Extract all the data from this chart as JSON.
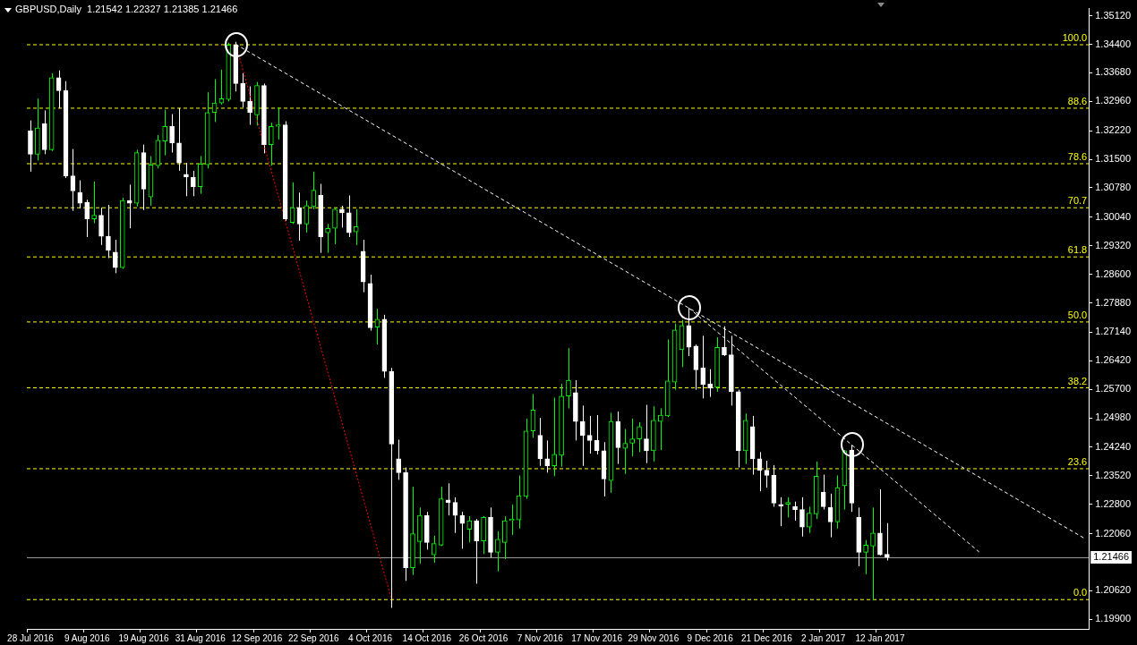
{
  "chart_data": {
    "type": "candlestick",
    "title": "GBPUSD,Daily  1.21542 1.22327 1.21385 1.21466",
    "colors": [
      "#ffffff",
      "#00ff00",
      "#ffffff",
      "#00ff00",
      "#ffffff",
      "#ffffff",
      "#ffffff",
      "#ffffff",
      "#ffffff",
      "#00ff00",
      "#ffffff",
      "#ffffff",
      "#ffffff",
      "#00ff00",
      "#ffffff",
      "#00ff00",
      "#ffffff",
      "#00ff00",
      "#00ff00",
      "#00ff00",
      "#ffffff",
      "#ffffff",
      "#ffffff",
      "#ffffff",
      "#00ff00",
      "#00ff00",
      "#00ff00",
      "#00ff00",
      "#00ff00",
      "#ffffff",
      "#ffffff",
      "#ffffff",
      "#00ff00",
      "#ffffff",
      "#00ff00",
      "#00ff00",
      "#ffffff",
      "#00ff00",
      "#ffffff",
      "#00ff00",
      "#00ff00",
      "#ffffff",
      "#00ff00",
      "#00ff00",
      "#ffffff",
      "#ffffff",
      "#00ff00",
      "#ffffff",
      "#ffffff",
      "#00ff00",
      "#ffffff",
      "#ffffff",
      "#ffffff",
      "#ffffff",
      "#00ff00",
      "#00ff00",
      "#ffffff",
      "#00ff00",
      "#00ff00",
      "#ffffff",
      "#ffffff",
      "#ffffff",
      "#00ff00",
      "#ffffff",
      "#00ff00",
      "#ffffff",
      "#00ff00",
      "#00ff00",
      "#00ff00",
      "#00ff00",
      "#00ff00",
      "#00ff00",
      "#ffffff",
      "#ffffff",
      "#00ff00",
      "#00ff00",
      "#00ff00",
      "#ffffff",
      "#ffffff",
      "#ffffff",
      "#ffffff",
      "#ffffff",
      "#00ff00",
      "#ffffff",
      "#00ff00",
      "#00ff00",
      "#00ff00",
      "#ffffff",
      "#00ff00",
      "#00ff00",
      "#00ff00",
      "#00ff00",
      "#00ff00",
      "#ffffff",
      "#ffffff",
      "#ffffff",
      "#ffffff",
      "#00ff00",
      "#ffffff",
      "#ffffff",
      "#ffffff",
      "#00ff00",
      "#ffffff",
      "#ffffff",
      "#ffffff",
      "#ffffff",
      "#ffffff",
      "#00ff00",
      "#ffffff",
      "#ffffff",
      "#00ff00",
      "#00ff00",
      "#ffffff",
      "#ffffff",
      "#00ff00",
      "#00ff00",
      "#ffffff",
      "#ffffff",
      "#00ff00",
      "#00ff00",
      "#ffffff",
      "#ffffff",
      null,
      null,
      null,
      null,
      null,
      null,
      null,
      null,
      null,
      null,
      null,
      null,
      null,
      null,
      null,
      null,
      null,
      null,
      null,
      null,
      null,
      null,
      null,
      null,
      null,
      null,
      null,
      null
    ],
    "categories": [
      "28 Jul 2016",
      null,
      null,
      null,
      null,
      null,
      null,
      null,
      "9 Aug 2016",
      null,
      null,
      null,
      null,
      null,
      null,
      null,
      "19 Aug 2016",
      null,
      null,
      null,
      null,
      null,
      null,
      null,
      "31 Aug 2016",
      null,
      null,
      null,
      null,
      null,
      null,
      null,
      "12 Sep 2016",
      null,
      null,
      null,
      null,
      null,
      null,
      null,
      "22 Sep 2016",
      null,
      null,
      null,
      null,
      null,
      null,
      null,
      "4 Oct 2016",
      null,
      null,
      null,
      null,
      null,
      null,
      null,
      "14 Oct 2016",
      null,
      null,
      null,
      null,
      null,
      null,
      null,
      "26 Oct 2016",
      null,
      null,
      null,
      null,
      null,
      null,
      null,
      "7 Nov 2016",
      null,
      null,
      null,
      null,
      null,
      null,
      null,
      "17 Nov 2016",
      null,
      null,
      null,
      null,
      null,
      null,
      null,
      "29 Nov 2016",
      null,
      null,
      null,
      null,
      null,
      null,
      null,
      "9 Dec 2016",
      null,
      null,
      null,
      null,
      null,
      null,
      null,
      "21 Dec 2016",
      null,
      null,
      null,
      null,
      null,
      null,
      null,
      "2 Jan 2017",
      null,
      null,
      null,
      null,
      null,
      null,
      null,
      "12 Jan 2017",
      null,
      null,
      null,
      null,
      null,
      null,
      null,
      null,
      null,
      null,
      null,
      null,
      null,
      null,
      null,
      null,
      null,
      null,
      null,
      null,
      null,
      null,
      null,
      null,
      null,
      null,
      null,
      null,
      null
    ],
    "ohlc": [
      [
        1.3222,
        1.3248,
        1.3119,
        1.3163
      ],
      [
        1.3163,
        1.3303,
        1.3147,
        1.3229
      ],
      [
        1.324,
        1.3273,
        1.3163,
        1.3174
      ],
      [
        1.3174,
        1.3367,
        1.3171,
        1.3356
      ],
      [
        1.3356,
        1.3374,
        1.3279,
        1.3323
      ],
      [
        1.3323,
        1.3347,
        1.3103,
        1.3108
      ],
      [
        1.3108,
        1.3176,
        1.302,
        1.307
      ],
      [
        1.3066,
        1.3097,
        1.3026,
        1.3039
      ],
      [
        1.3042,
        1.3048,
        1.2954,
        1.3
      ],
      [
        1.3,
        1.3094,
        1.2989,
        1.3009
      ],
      [
        1.3009,
        1.3028,
        1.2934,
        1.2956
      ],
      [
        1.2956,
        1.3035,
        1.2901,
        1.2921
      ],
      [
        1.2916,
        1.2947,
        1.2863,
        1.2877
      ],
      [
        1.2877,
        1.3053,
        1.2874,
        1.3046
      ],
      [
        1.3046,
        1.3086,
        1.2976,
        1.3039
      ],
      [
        1.3039,
        1.3174,
        1.3031,
        1.3167
      ],
      [
        1.3167,
        1.3187,
        1.3022,
        1.3075
      ],
      [
        1.3055,
        1.3158,
        1.3033,
        1.3136
      ],
      [
        1.3134,
        1.3211,
        1.3127,
        1.3198
      ],
      [
        1.3196,
        1.3275,
        1.316,
        1.3233
      ],
      [
        1.3233,
        1.3264,
        1.3167,
        1.3191
      ],
      [
        1.3191,
        1.3279,
        1.3121,
        1.3141
      ],
      [
        1.3112,
        1.3141,
        1.3057,
        1.3105
      ],
      [
        1.3105,
        1.3121,
        1.3057,
        1.3081
      ],
      [
        1.3081,
        1.3158,
        1.3063,
        1.3138
      ],
      [
        1.3136,
        1.3319,
        1.3127,
        1.3268
      ],
      [
        1.3268,
        1.3352,
        1.3244,
        1.3292
      ],
      [
        1.3292,
        1.3376,
        1.3288,
        1.3303
      ],
      [
        1.3301,
        1.3444,
        1.3296,
        1.3438
      ],
      [
        1.3438,
        1.3446,
        1.3321,
        1.3341
      ],
      [
        1.3341,
        1.3367,
        1.3281,
        1.3296
      ],
      [
        1.3296,
        1.3334,
        1.3237,
        1.3268
      ],
      [
        1.3262,
        1.3345,
        1.3235,
        1.3336
      ],
      [
        1.3336,
        1.3341,
        1.3165,
        1.3187
      ],
      [
        1.3187,
        1.3242,
        1.3134,
        1.3233
      ],
      [
        1.3233,
        1.3281,
        1.32,
        1.3237
      ],
      [
        1.3237,
        1.3246,
        1.2995,
        1.3
      ],
      [
        1.2991,
        1.3092,
        1.2987,
        1.3028
      ],
      [
        1.3028,
        1.3066,
        1.2945,
        1.2987
      ],
      [
        1.2987,
        1.3046,
        1.2965,
        1.3033
      ],
      [
        1.3031,
        1.3119,
        1.3024,
        1.3072
      ],
      [
        1.3059,
        1.3088,
        1.2914,
        1.2954
      ],
      [
        1.2965,
        1.2987,
        1.2914,
        1.2976
      ],
      [
        1.2976,
        1.3028,
        1.2936,
        1.3024
      ],
      [
        1.3024,
        1.3033,
        1.2978,
        1.3015
      ],
      [
        1.3015,
        1.3059,
        1.2954,
        1.2965
      ],
      [
        1.2967,
        1.3024,
        1.2934,
        1.298
      ],
      [
        1.2918,
        1.2947,
        1.2815,
        1.2841
      ],
      [
        1.2837,
        1.2859,
        1.2718,
        1.2725
      ],
      [
        1.2727,
        1.2773,
        1.2683,
        1.2747
      ],
      [
        1.2747,
        1.2758,
        1.2599,
        1.2615
      ],
      [
        1.2615,
        1.2624,
        1.2019,
        1.2432
      ],
      [
        1.2395,
        1.2443,
        1.2342,
        1.236
      ],
      [
        1.236,
        1.2373,
        1.2087,
        1.212
      ],
      [
        1.212,
        1.2324,
        1.2102,
        1.2206
      ],
      [
        1.2186,
        1.2272,
        1.2131,
        1.2252
      ],
      [
        1.2252,
        1.2261,
        1.2166,
        1.2184
      ],
      [
        1.2153,
        1.2201,
        1.2133,
        1.2181
      ],
      [
        1.2177,
        1.2324,
        1.2175,
        1.2294
      ],
      [
        1.2291,
        1.2333,
        1.2252,
        1.2285
      ],
      [
        1.2285,
        1.2298,
        1.2208,
        1.2252
      ],
      [
        1.2252,
        1.2261,
        1.2168,
        1.2232
      ],
      [
        1.2217,
        1.225,
        1.2184,
        1.2239
      ],
      [
        1.2239,
        1.2243,
        1.208,
        1.2188
      ],
      [
        1.2188,
        1.225,
        1.2155,
        1.2247
      ],
      [
        1.2247,
        1.2272,
        1.2146,
        1.2159
      ],
      [
        1.2159,
        1.2212,
        1.2111,
        1.2192
      ],
      [
        1.2184,
        1.225,
        1.2142,
        1.2239
      ],
      [
        1.2239,
        1.228,
        1.2203,
        1.2243
      ],
      [
        1.2241,
        1.2353,
        1.2219,
        1.2302
      ],
      [
        1.23,
        1.2496,
        1.2294,
        1.2465
      ],
      [
        1.2465,
        1.2558,
        1.2448,
        1.2518
      ],
      [
        1.2454,
        1.2498,
        1.2377,
        1.2395
      ],
      [
        1.2395,
        1.2441,
        1.236,
        1.2377
      ],
      [
        1.2377,
        1.2549,
        1.2351,
        1.2406
      ],
      [
        1.2404,
        1.2584,
        1.2375,
        1.2553
      ],
      [
        1.2553,
        1.2674,
        1.2522,
        1.2593
      ],
      [
        1.2562,
        1.2593,
        1.2441,
        1.2489
      ],
      [
        1.2489,
        1.2529,
        1.2377,
        1.2454
      ],
      [
        1.2454,
        1.2503,
        1.2408,
        1.2441
      ],
      [
        1.2441,
        1.2505,
        1.2406,
        1.2415
      ],
      [
        1.2415,
        1.2437,
        1.23,
        1.2344
      ],
      [
        1.234,
        1.2511,
        1.2309,
        1.2489
      ],
      [
        1.2489,
        1.2514,
        1.2382,
        1.2423
      ],
      [
        1.2421,
        1.247,
        1.2357,
        1.2434
      ],
      [
        1.2434,
        1.2496,
        1.2401,
        1.2445
      ],
      [
        1.2445,
        1.2487,
        1.2412,
        1.2476
      ],
      [
        1.2445,
        1.2531,
        1.2384,
        1.2415
      ],
      [
        1.2415,
        1.2527,
        1.2388,
        1.2492
      ],
      [
        1.2489,
        1.2522,
        1.2417,
        1.2505
      ],
      [
        1.2503,
        1.2696,
        1.25,
        1.2591
      ],
      [
        1.2588,
        1.2736,
        1.2569,
        1.272
      ],
      [
        1.267,
        1.2745,
        1.2626,
        1.2731
      ],
      [
        1.2731,
        1.2775,
        1.2654,
        1.2676
      ],
      [
        1.2679,
        1.2683,
        1.2569,
        1.2619
      ],
      [
        1.2624,
        1.2705,
        1.2547,
        1.2582
      ],
      [
        1.2584,
        1.2621,
        1.2551,
        1.2573
      ],
      [
        1.2575,
        1.2701,
        1.2564,
        1.2676
      ],
      [
        1.2676,
        1.2729,
        1.2654,
        1.2657
      ],
      [
        1.2657,
        1.2705,
        1.2529,
        1.2564
      ],
      [
        1.2564,
        1.2569,
        1.2373,
        1.2415
      ],
      [
        1.2415,
        1.2509,
        1.2382,
        1.2492
      ],
      [
        1.2476,
        1.2503,
        1.2355,
        1.2395
      ],
      [
        1.2395,
        1.2412,
        1.2313,
        1.2366
      ],
      [
        1.2366,
        1.239,
        1.2322,
        1.2353
      ],
      [
        1.2353,
        1.2379,
        1.2274,
        1.2283
      ],
      [
        1.228,
        1.2298,
        1.2225,
        1.2276
      ],
      [
        1.228,
        1.2298,
        1.2247,
        1.2285
      ],
      [
        1.2274,
        1.2287,
        1.2239,
        1.2267
      ],
      [
        1.2267,
        1.2298,
        1.2199,
        1.2223
      ],
      [
        1.2223,
        1.2274,
        1.2208,
        1.2258
      ],
      [
        1.2256,
        1.2388,
        1.2243,
        1.2351
      ],
      [
        1.2311,
        1.2355,
        1.2267,
        1.2274
      ],
      [
        1.2272,
        1.2307,
        1.2197,
        1.2236
      ],
      [
        1.2236,
        1.2353,
        1.2219,
        1.2322
      ],
      [
        1.2327,
        1.2417,
        1.2267,
        1.2415
      ],
      [
        1.2417,
        1.243,
        1.2261,
        1.2283
      ],
      [
        1.2247,
        1.2272,
        1.2124,
        1.2159
      ],
      [
        1.2159,
        1.219,
        1.2104,
        1.2177
      ],
      [
        1.2175,
        1.2272,
        1.2038,
        1.2208
      ],
      [
        1.2208,
        1.2318,
        1.2151,
        1.2153
      ],
      [
        1.21542,
        1.22327,
        1.21385,
        1.21466
      ],
      null,
      null,
      null,
      null,
      null,
      null,
      null,
      null,
      null,
      null,
      null,
      null,
      null,
      null,
      null,
      null,
      null,
      null,
      null,
      null,
      null,
      null,
      null,
      null,
      null,
      null,
      null,
      null
    ],
    "series": [
      {
        "type": "line",
        "color": "#ffffff",
        "line_style": "dashed",
        "values": [
          null,
          null,
          null,
          null,
          null,
          null,
          null,
          null,
          null,
          null,
          null,
          null,
          null,
          null,
          null,
          null,
          null,
          null,
          null,
          null,
          null,
          null,
          null,
          null,
          null,
          null,
          null,
          null,
          null,
          1.344,
          null,
          null,
          null,
          null,
          null,
          null,
          null,
          null,
          null,
          null,
          null,
          null,
          null,
          null,
          null,
          null,
          null,
          null,
          null,
          null,
          null,
          null,
          null,
          null,
          null,
          null,
          null,
          null,
          null,
          null,
          null,
          null,
          null,
          null,
          null,
          null,
          null,
          null,
          null,
          null,
          null,
          null,
          null,
          null,
          null,
          null,
          null,
          null,
          null,
          null,
          null,
          null,
          null,
          null,
          null,
          null,
          null,
          null,
          null,
          null,
          null,
          null,
          null,
          null,
          null,
          null,
          null,
          null,
          null,
          null,
          null,
          null,
          null,
          null,
          null,
          null,
          null,
          null,
          null,
          null,
          null,
          null,
          null,
          null,
          null,
          null,
          null,
          null,
          null,
          null,
          null,
          null,
          null,
          null,
          null,
          null,
          null,
          null,
          null,
          null,
          null,
          null,
          null,
          null,
          null,
          null,
          null,
          null,
          null,
          null,
          null,
          null,
          null,
          null,
          null,
          null,
          null,
          null,
          null,
          1.2193
        ]
      },
      {
        "type": "line",
        "color": "#ffffff",
        "line_style": "dashed",
        "values": [
          null,
          null,
          null,
          null,
          null,
          null,
          null,
          null,
          null,
          null,
          null,
          null,
          null,
          null,
          null,
          null,
          null,
          null,
          null,
          null,
          null,
          null,
          null,
          null,
          null,
          null,
          null,
          null,
          null,
          null,
          null,
          null,
          null,
          null,
          null,
          null,
          null,
          null,
          null,
          null,
          null,
          null,
          null,
          null,
          null,
          null,
          null,
          null,
          null,
          null,
          null,
          null,
          null,
          null,
          null,
          null,
          null,
          null,
          null,
          null,
          null,
          null,
          null,
          null,
          null,
          null,
          null,
          null,
          null,
          null,
          null,
          null,
          null,
          null,
          null,
          null,
          null,
          null,
          null,
          null,
          null,
          null,
          null,
          null,
          null,
          null,
          null,
          null,
          null,
          null,
          null,
          null,
          null,
          1.2775,
          null,
          null,
          null,
          null,
          null,
          null,
          null,
          null,
          null,
          null,
          null,
          null,
          null,
          null,
          null,
          null,
          null,
          null,
          null,
          null,
          null,
          null,
          1.243,
          null,
          null,
          null,
          null,
          null,
          null,
          null,
          null,
          null,
          null,
          null,
          null,
          null,
          null,
          null,
          null,
          null,
          1.216,
          null,
          null,
          null,
          null,
          null,
          null,
          null,
          null,
          null,
          null,
          null,
          null,
          null,
          null,
          null
        ]
      },
      {
        "type": "line",
        "color": "#ff0000",
        "line_style": "dotted",
        "values": [
          null,
          null,
          null,
          null,
          null,
          null,
          null,
          null,
          null,
          null,
          null,
          null,
          null,
          null,
          null,
          null,
          null,
          null,
          null,
          null,
          null,
          null,
          null,
          null,
          null,
          null,
          null,
          null,
          null,
          1.344,
          null,
          null,
          null,
          null,
          null,
          null,
          null,
          null,
          null,
          null,
          null,
          null,
          null,
          null,
          null,
          null,
          null,
          null,
          null,
          null,
          null,
          1.2041,
          null,
          null,
          null,
          null,
          null,
          null,
          null,
          null,
          null,
          null,
          null,
          null,
          null,
          null,
          null,
          null,
          null,
          null,
          null,
          null,
          null,
          null,
          null,
          null,
          null,
          null,
          null,
          null,
          null,
          null,
          null,
          null,
          null,
          null,
          null,
          null,
          null,
          null,
          null,
          null,
          null,
          null,
          null,
          null,
          null,
          null,
          null,
          null,
          null,
          null,
          null,
          null,
          null,
          null,
          null,
          null,
          null,
          null,
          null,
          null,
          null,
          null,
          null,
          null,
          null,
          null,
          null,
          null,
          null,
          null,
          null,
          null,
          null,
          null,
          null,
          null,
          null,
          null,
          null,
          null,
          null,
          null,
          null,
          null,
          null,
          null,
          null,
          null,
          null,
          null,
          null,
          null,
          null,
          null,
          null,
          null,
          null,
          null
        ]
      }
    ],
    "annotations": [
      {
        "text": "100.0",
        "y": 1.344
      },
      {
        "text": "88.6",
        "y": 1.328
      },
      {
        "text": "78.6",
        "y": 1.314
      },
      {
        "text": "70.7",
        "y": 1.3029
      },
      {
        "text": "61.8",
        "y": 1.2905
      },
      {
        "text": "50.0",
        "y": 1.2741
      },
      {
        "text": "38.2",
        "y": 1.2575
      },
      {
        "text": "23.6",
        "y": 1.2371
      },
      {
        "text": "0.0",
        "y": 1.2041
      }
    ],
    "ylim": [
      1.1966,
      1.353
    ],
    "yticks": [
      {
        "value": 1.3512,
        "label": "1.35120"
      },
      {
        "value": 1.344,
        "label": "1.34400"
      },
      {
        "value": 1.3368,
        "label": "1.33680"
      },
      {
        "value": 1.3296,
        "label": "1.32960"
      },
      {
        "value": 1.3222,
        "label": "1.32220"
      },
      {
        "value": 1.315,
        "label": "1.31500"
      },
      {
        "value": 1.3078,
        "label": "1.30780"
      },
      {
        "value": 1.3004,
        "label": "1.30040"
      },
      {
        "value": 1.2932,
        "label": "1.29320"
      },
      {
        "value": 1.286,
        "label": "1.28600"
      },
      {
        "value": 1.2788,
        "label": "1.27880"
      },
      {
        "value": 1.2714,
        "label": "1.27140"
      },
      {
        "value": 1.2642,
        "label": "1.26420"
      },
      {
        "value": 1.257,
        "label": "1.25700"
      },
      {
        "value": 1.2498,
        "label": "1.24980"
      },
      {
        "value": 1.2424,
        "label": "1.24240"
      },
      {
        "value": 1.2352,
        "label": "1.23520"
      },
      {
        "value": 1.228,
        "label": "1.22800"
      },
      {
        "value": 1.2206,
        "label": "1.22060"
      },
      {
        "value": 1.2062,
        "label": "1.20620"
      },
      {
        "value": 1.199,
        "label": "1.19900"
      }
    ],
    "ref_lines": [
      {
        "axis": "y",
        "value": 1.344,
        "color": "#ffff00",
        "line_style": "dashed"
      },
      {
        "axis": "y",
        "value": 1.328,
        "color": "#ffff00",
        "line_style": "dashed"
      },
      {
        "axis": "y",
        "value": 1.314,
        "color": "#ffff00",
        "line_style": "dashed"
      },
      {
        "axis": "y",
        "value": 1.3029,
        "color": "#ffff00",
        "line_style": "dashed"
      },
      {
        "axis": "y",
        "value": 1.2905,
        "color": "#ffff00",
        "line_style": "dashed"
      },
      {
        "axis": "y",
        "value": 1.2741,
        "color": "#ffff00",
        "line_style": "dashed"
      },
      {
        "axis": "y",
        "value": 1.2575,
        "color": "#ffff00",
        "line_style": "dashed"
      },
      {
        "axis": "y",
        "value": 1.2371,
        "color": "#ffff00",
        "line_style": "dashed"
      },
      {
        "axis": "y",
        "value": 1.2041,
        "color": "#ffff00",
        "line_style": "dashed"
      },
      {
        "axis": "y",
        "value": 1.21466,
        "label": "1.21466",
        "color": "#a0a0a0",
        "line_style": "solid"
      }
    ]
  }
}
